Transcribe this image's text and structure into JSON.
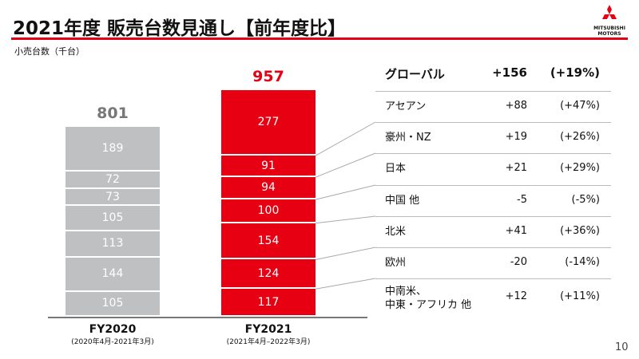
{
  "title": "2021年度 販売台数見通し【前年度比】",
  "unit_label": "小売台数（千台）",
  "logo": "MITSUBISHI MOTORS",
  "colors": {
    "fy2020": "#bfc0c2",
    "fy2021": "#e60012",
    "accent": "#e60012"
  },
  "chart_data": {
    "type": "bar",
    "stacked": true,
    "categories": [
      "FY2020",
      "FY2021"
    ],
    "category_subtitles": [
      "(2020年4月-2021年3月)",
      "(2021年4月–2022年3月)"
    ],
    "totals": [
      801,
      957
    ],
    "segments_bottom_to_top": [
      {
        "values": [
          105,
          117
        ]
      },
      {
        "values": [
          144,
          124
        ]
      },
      {
        "values": [
          113,
          154
        ]
      },
      {
        "values": [
          105,
          100
        ]
      },
      {
        "values": [
          73,
          94
        ]
      },
      {
        "values": [
          72,
          91
        ]
      },
      {
        "values": [
          189,
          277
        ]
      }
    ]
  },
  "table": {
    "header": {
      "region": "グローバル",
      "diff": "+156",
      "pct": "(+19%)"
    },
    "rows": [
      {
        "region": "アセアン",
        "diff": "+88",
        "pct": "(+47%)"
      },
      {
        "region": "豪州・NZ",
        "diff": "+19",
        "pct": "(+26%)"
      },
      {
        "region": "日本",
        "diff": "+21",
        "pct": "(+29%)"
      },
      {
        "region": "中国 他",
        "diff": "-5",
        "pct": "(-5%)"
      },
      {
        "region": "北米",
        "diff": "+41",
        "pct": "(+36%)"
      },
      {
        "region": "欧州",
        "diff": "-20",
        "pct": "(-14%)"
      },
      {
        "region": "中南米、\n中東・アフリカ 他",
        "diff": "+12",
        "pct": "(+11%)"
      }
    ]
  },
  "page_number": "10"
}
